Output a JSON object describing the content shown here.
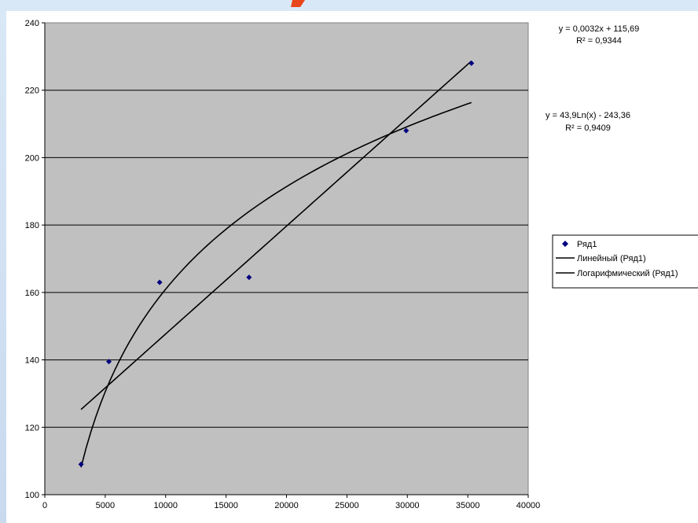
{
  "chart_data": {
    "type": "scatter",
    "xlim": [
      0,
      40000
    ],
    "ylim": [
      100,
      240
    ],
    "x_ticks": [
      0,
      5000,
      10000,
      15000,
      20000,
      25000,
      30000,
      35000,
      40000
    ],
    "y_ticks": [
      100,
      120,
      140,
      160,
      180,
      200,
      220,
      240
    ],
    "grid": true,
    "series": [
      {
        "name": "Ряд1",
        "marker": "diamond",
        "color": "#000080",
        "points": [
          {
            "x": 3000,
            "y": 109
          },
          {
            "x": 5300,
            "y": 139.5
          },
          {
            "x": 9500,
            "y": 163
          },
          {
            "x": 16900,
            "y": 164.5
          },
          {
            "x": 29900,
            "y": 208
          },
          {
            "x": 35300,
            "y": 228
          }
        ]
      }
    ],
    "trendlines": [
      {
        "name": "Линейный (Ряд1)",
        "kind": "linear",
        "slope": 0.0032,
        "intercept": 115.69,
        "x_range": [
          3000,
          35300
        ],
        "equation": "y = 0,0032x + 115,69",
        "r2_text": "R² = 0,9344"
      },
      {
        "name": "Логарифмический (Ряд1)",
        "kind": "log",
        "a": 43.9,
        "b": -243.36,
        "x_range": [
          3000,
          35300
        ],
        "equation": "y = 43,9Ln(x) - 243,36",
        "r2_text": "R² = 0,9409"
      }
    ],
    "legend_position": "right",
    "colors": {
      "plot_bg": "#c0c0c0",
      "line": "#000000",
      "marker": "#000080",
      "page_bg": "#cfe0f3",
      "title_fragment": "#e8461c"
    }
  }
}
